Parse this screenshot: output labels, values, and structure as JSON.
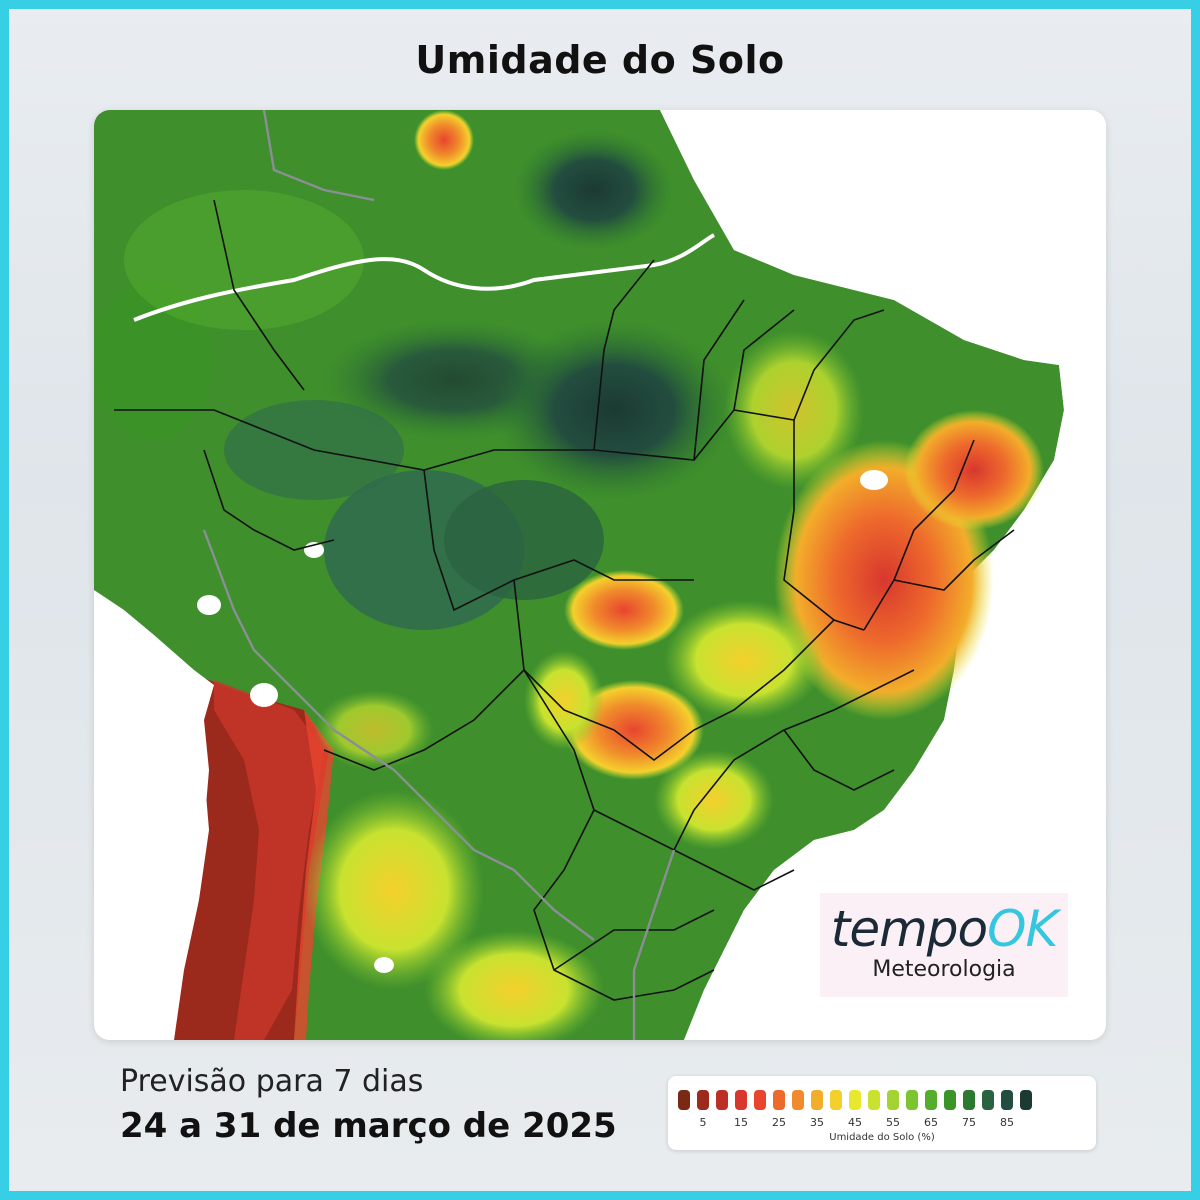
{
  "title": "Umidade do Solo",
  "forecast": {
    "label": "Previsão para 7 dias",
    "dates": "24 a 31 de março de 2025"
  },
  "logo": {
    "brand_part1": "tempo",
    "brand_part2": "OK",
    "subtitle": "Meteorologia"
  },
  "legend": {
    "caption": "Umidade do Solo (%)",
    "ticks": [
      "5",
      "15",
      "25",
      "35",
      "45",
      "55",
      "65",
      "75",
      "85"
    ],
    "colors": [
      "#7a2a14",
      "#9c2b1e",
      "#bb2f26",
      "#d8372e",
      "#e8452f",
      "#ee6a2c",
      "#f08a2b",
      "#f2ad2a",
      "#f4d02c",
      "#e7e82f",
      "#c8e22f",
      "#a3d433",
      "#7dc431",
      "#55ad2d",
      "#3a9427",
      "#2c7a2f",
      "#2a6340",
      "#234d3f",
      "#1b3a32"
    ]
  },
  "map": {
    "description_colors": {
      "very_wet": "#1f4a3d",
      "wet": "#2f6b4e",
      "moist": "#3f8f2c",
      "medium": "#7dbf2a",
      "dry": "#e5d62a",
      "very_dry": "#e56b25",
      "arid": "#9b2a1c",
      "water": "#ffffff"
    }
  }
}
